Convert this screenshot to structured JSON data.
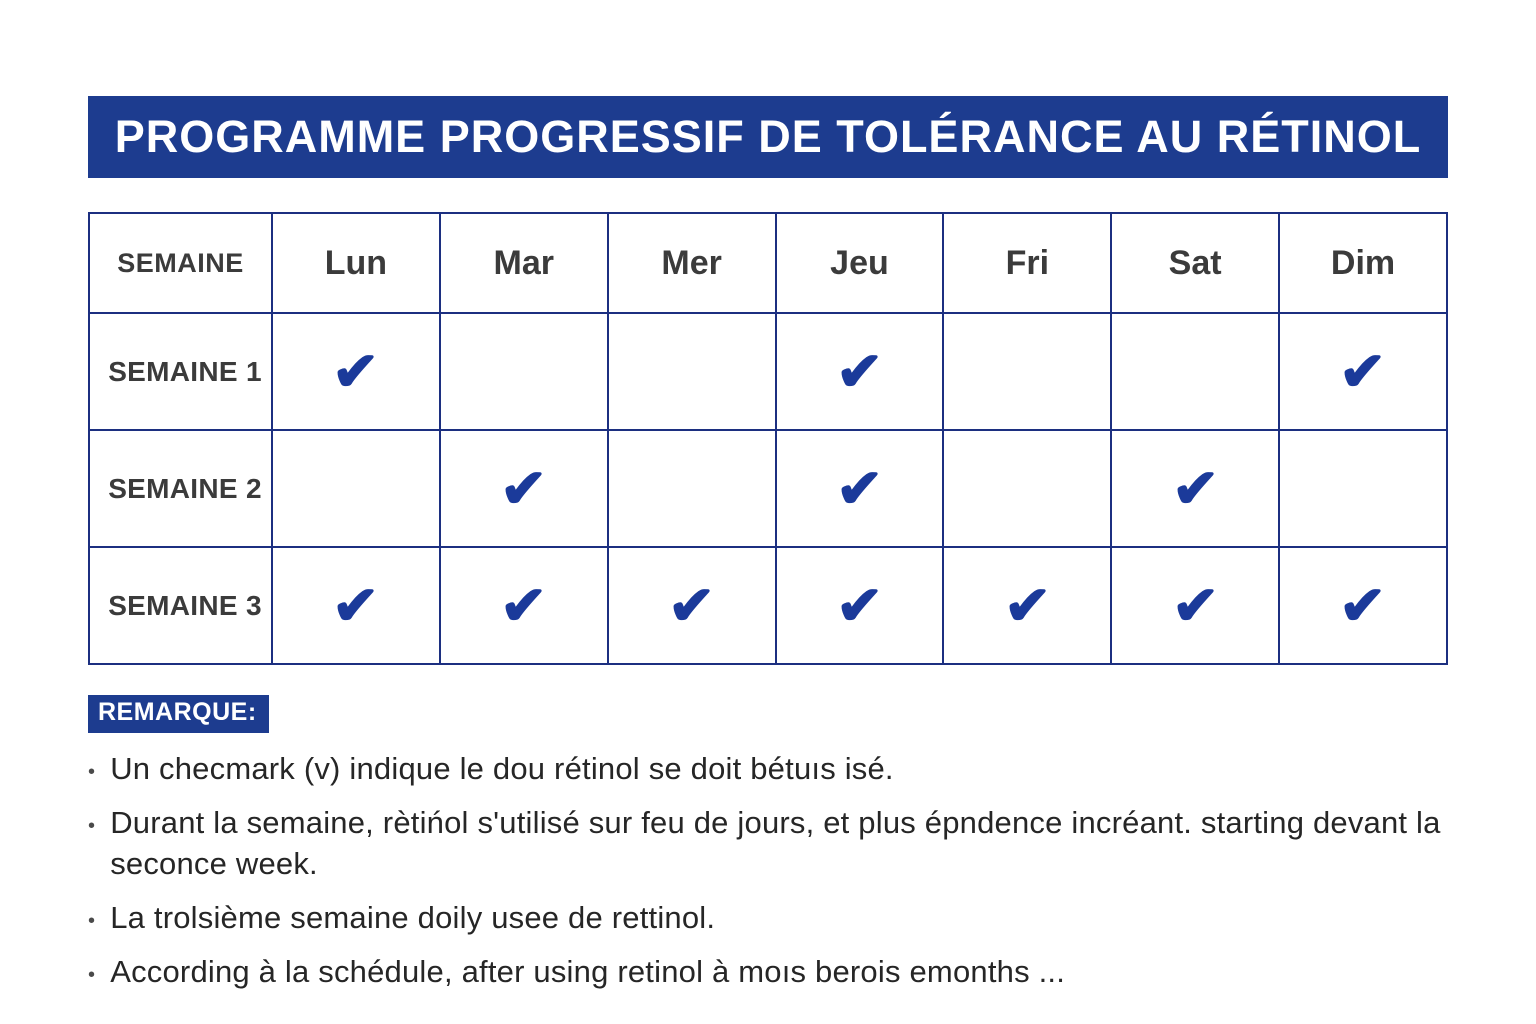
{
  "title": "PROGRAMME PROGRESSIF DE TOLÉRANCE AU RÉTINOL",
  "colors": {
    "banner_bg": "#1d3c8f",
    "table_border": "#1c2f80",
    "check": "#1b3a9a",
    "header_text": "#3b3b3b",
    "note_text": "#262626"
  },
  "table": {
    "check_glyph": "✔",
    "columns": [
      "SEMAINE",
      "Lun",
      "Mar",
      "Mer",
      "Jeu",
      "Fri",
      "Sat",
      "Dim"
    ],
    "rows": [
      {
        "label": "SEMAINE 1",
        "checks": [
          true,
          false,
          false,
          true,
          false,
          false,
          true
        ]
      },
      {
        "label": "SEMAINE 2",
        "checks": [
          false,
          true,
          false,
          true,
          false,
          true,
          false
        ]
      },
      {
        "label": "SEMAINE 3",
        "checks": [
          true,
          true,
          true,
          true,
          true,
          true,
          true
        ]
      }
    ]
  },
  "notes": {
    "label": "REMARQUE:",
    "items": [
      "Un checmark (v) indique le dou rétinol se doit bétuıs isé.",
      "Durant la semaine, rètińol s'utilisé sur feu de jours, et plus épndence incréant. starting devant la seconce week.",
      "La trolsième semaine doily usee de rettinol.",
      "According à la  schédule, after using retinol à moıs berois emonths ..."
    ]
  }
}
